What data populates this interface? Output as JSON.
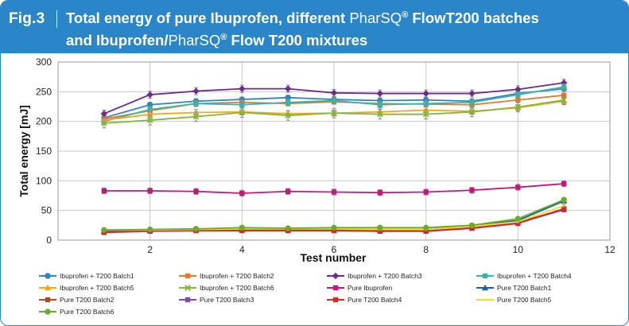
{
  "header": {
    "fig_label": "Fig.3",
    "title_line1_a": "Total energy of pure Ibuprofen, different ",
    "title_line1_b": "PharSQ",
    "title_line1_c": " FlowT200 batches",
    "title_line2_a": "and Ibuprofen/",
    "title_line2_b": "PharSQ",
    "title_line2_c": " Flow T200  mixtures",
    "reg_mark": "®"
  },
  "colors": {
    "header_bg": "#2a86c8",
    "grid": "#c8c8c8"
  },
  "chart_data": {
    "type": "line",
    "title": "",
    "xlabel": "Test number",
    "ylabel": "Total energy [mJ]",
    "xlim": [
      0,
      12
    ],
    "ylim": [
      0,
      300
    ],
    "xticks": [
      2,
      4,
      6,
      8,
      10,
      12
    ],
    "yticks": [
      0,
      50,
      100,
      150,
      200,
      250,
      300
    ],
    "grid": true,
    "x": [
      1,
      2,
      3,
      4,
      5,
      6,
      7,
      8,
      9,
      10,
      11
    ],
    "series": [
      {
        "name": "Ibuprofen + T200 Batch1",
        "color": "#2e86c1",
        "marker": "circle",
        "values": [
          206,
          228,
          234,
          237,
          240,
          237,
          235,
          236,
          234,
          247,
          255
        ],
        "err": 4
      },
      {
        "name": "Ibuprofen + T200 Batch2",
        "color": "#e07a2e",
        "marker": "square",
        "values": [
          204,
          218,
          230,
          232,
          230,
          233,
          230,
          229,
          228,
          236,
          244
        ],
        "err": 4
      },
      {
        "name": "Ibuprofen + T200 Batch3",
        "color": "#6c2c8c",
        "marker": "diamond",
        "values": [
          213,
          245,
          251,
          255,
          255,
          248,
          247,
          247,
          247,
          254,
          265
        ],
        "err": 6
      },
      {
        "name": "Ibuprofen + T200 Batch4",
        "color": "#3bb3a8",
        "marker": "square",
        "values": [
          200,
          220,
          230,
          228,
          232,
          235,
          228,
          230,
          232,
          245,
          258
        ],
        "err": 5
      },
      {
        "name": "Ibuprofen + T200 Batch5",
        "color": "#f0a820",
        "marker": "triangle",
        "values": [
          202,
          212,
          215,
          216,
          213,
          214,
          216,
          219,
          217,
          223,
          234
        ],
        "err": 5
      },
      {
        "name": "Ibuprofen + T200 Batch6",
        "color": "#82b834",
        "marker": "x",
        "values": [
          197,
          202,
          208,
          215,
          210,
          214,
          212,
          212,
          216,
          224,
          236
        ],
        "err": 8
      },
      {
        "name": "Pure Ibuprofen",
        "color": "#c2187a",
        "marker": "square",
        "values": [
          83,
          83,
          82,
          79,
          82,
          81,
          80,
          81,
          84,
          89,
          95
        ],
        "err": 5
      },
      {
        "name": "Pure  T200 Batch1",
        "color": "#1f5fa8",
        "marker": "triangle",
        "values": [
          16,
          17,
          18,
          18,
          19,
          19,
          18,
          18,
          24,
          33,
          66
        ],
        "err": 2
      },
      {
        "name": "Pure T200 Batch2",
        "color": "#a0522d",
        "marker": "square",
        "values": [
          14,
          16,
          17,
          17,
          18,
          18,
          17,
          17,
          22,
          30,
          52
        ],
        "err": 2
      },
      {
        "name": "Pure  T200 Batch3",
        "color": "#7d4ea0",
        "marker": "square",
        "values": [
          15,
          16,
          17,
          18,
          17,
          17,
          16,
          16,
          21,
          29,
          51
        ],
        "err": 2
      },
      {
        "name": "Pure  T200 Batch4",
        "color": "#d62728",
        "marker": "square",
        "values": [
          13,
          15,
          16,
          16,
          16,
          16,
          15,
          15,
          20,
          28,
          53
        ],
        "err": 2
      },
      {
        "name": "Pure  T200 Batch5",
        "color": "#f4e11c",
        "marker": "none",
        "values": [
          17,
          17,
          18,
          19,
          19,
          19,
          18,
          18,
          23,
          31,
          58
        ],
        "err": 2
      },
      {
        "name": "Pure T200 Batch6",
        "color": "#6aab2e",
        "marker": "circle",
        "values": [
          17,
          18,
          19,
          21,
          20,
          21,
          21,
          21,
          25,
          36,
          68
        ],
        "err": 2
      }
    ],
    "legend_position": "bottom"
  }
}
